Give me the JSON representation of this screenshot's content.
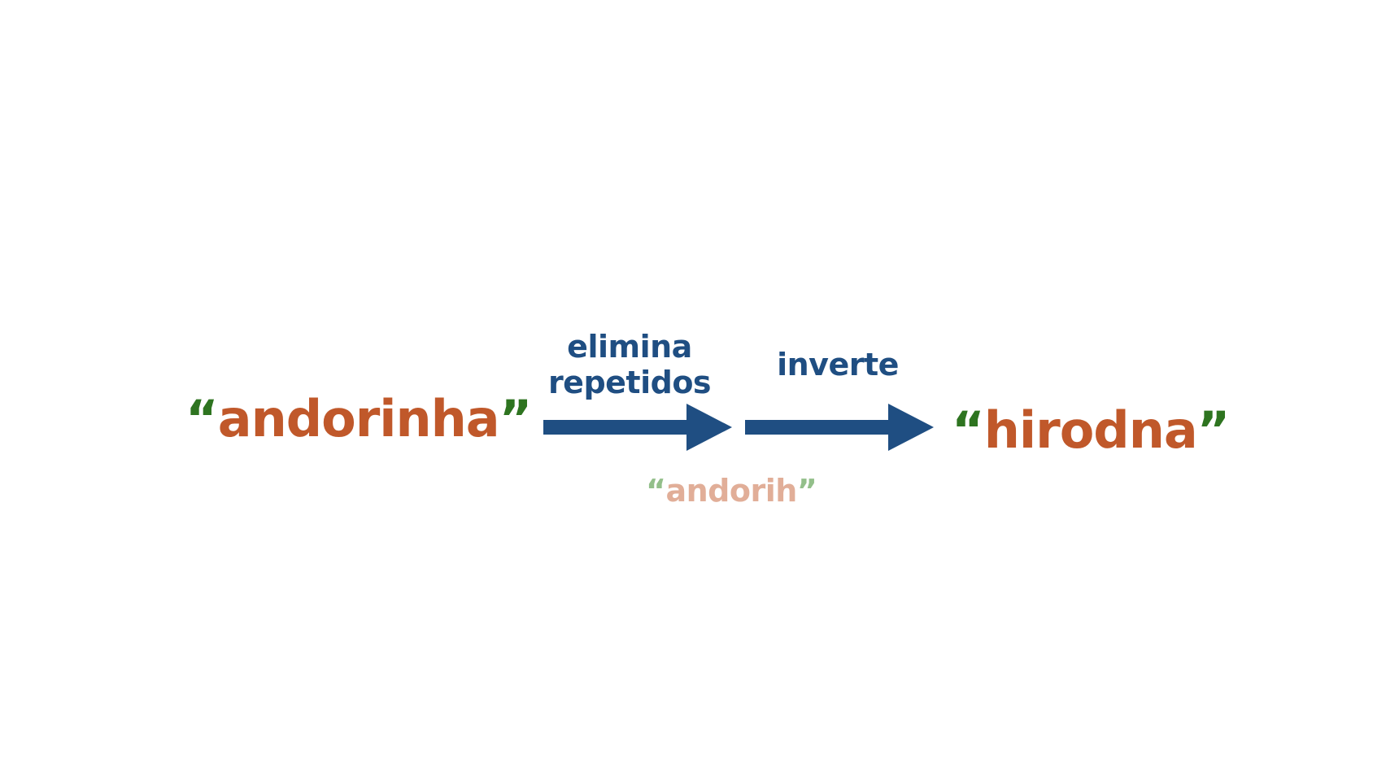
{
  "colors": {
    "word": "#c0582a",
    "quote": "#2e7420",
    "step": "#1f4e82",
    "intermediate_word": "#e1ae98",
    "intermediate_quote": "#93bf8a"
  },
  "input": {
    "open_quote": "“",
    "text": "andorinha",
    "close_quote": "”"
  },
  "steps": [
    {
      "label_line1": "elimina",
      "label_line2": "repetidos"
    },
    {
      "label": "inverte"
    }
  ],
  "intermediate": {
    "open_quote": "“",
    "text": "andorih",
    "close_quote": "”"
  },
  "output": {
    "open_quote": "“",
    "text": "hirodna",
    "close_quote": "”"
  }
}
